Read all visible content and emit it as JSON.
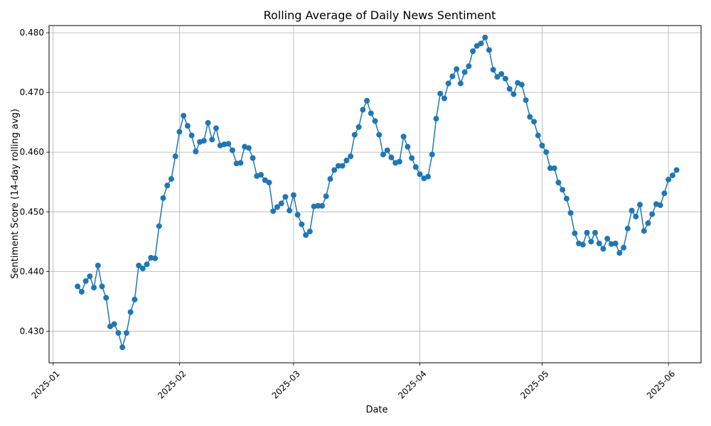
{
  "chart_data": {
    "type": "line",
    "title": "Rolling Average of Daily News Sentiment",
    "xlabel": "Date",
    "ylabel": "Sentiment Score (14-day rolling avg)",
    "x_tick_labels": [
      "2025-01",
      "2025-02",
      "2025-03",
      "2025-04",
      "2025-05",
      "2025-06"
    ],
    "y_tick_labels": [
      "0.430",
      "0.440",
      "0.450",
      "0.460",
      "0.470",
      "0.480"
    ],
    "xlim": [
      "2024-12-31",
      "2025-06-09"
    ],
    "ylim": [
      0.4247,
      0.4812
    ],
    "grid": true,
    "marker": "circle",
    "color": "#1f77b4",
    "series": [
      {
        "x_start": "2025-01-07",
        "x_step_days": 1,
        "values": [
          0.4375,
          0.4366,
          0.4384,
          0.4392,
          0.4373,
          0.441,
          0.4375,
          0.4356,
          0.4308,
          0.4312,
          0.4297,
          0.4273,
          0.4297,
          0.4332,
          0.4353,
          0.441,
          0.4405,
          0.4412,
          0.4423,
          0.4422,
          0.4476,
          0.4523,
          0.4544,
          0.4555,
          0.4593,
          0.4634,
          0.4661,
          0.4644,
          0.4628,
          0.4601,
          0.4617,
          0.4619,
          0.4649,
          0.4621,
          0.464,
          0.4611,
          0.4613,
          0.4614,
          0.4603,
          0.4581,
          0.4582,
          0.4609,
          0.4607,
          0.459,
          0.456,
          0.4562,
          0.4553,
          0.4549,
          0.4501,
          0.4508,
          0.4514,
          0.4525,
          0.4502,
          0.4528,
          0.4495,
          0.4479,
          0.4461,
          0.4467,
          0.4509,
          0.451,
          0.451,
          0.4526,
          0.4555,
          0.457,
          0.4577,
          0.4577,
          0.4586,
          0.4593,
          0.4629,
          0.4642,
          0.4671,
          0.4686,
          0.4665,
          0.4652,
          0.4629,
          0.4596,
          0.4603,
          0.4591,
          0.4582,
          0.4584,
          0.4626,
          0.4609,
          0.459,
          0.4575,
          0.4563,
          0.4556,
          0.4559,
          0.4596,
          0.4656,
          0.4698,
          0.469,
          0.4715,
          0.4727,
          0.4739,
          0.4715,
          0.4734,
          0.4744,
          0.4769,
          0.4778,
          0.4782,
          0.4792,
          0.4771,
          0.4738,
          0.4726,
          0.4731,
          0.4723,
          0.4706,
          0.4697,
          0.4716,
          0.4713,
          0.4687,
          0.4659,
          0.4651,
          0.4628,
          0.4611,
          0.46,
          0.4573,
          0.4573,
          0.4549,
          0.4537,
          0.4522,
          0.4498,
          0.4464,
          0.4447,
          0.4445,
          0.4465,
          0.445,
          0.4465,
          0.4447,
          0.4438,
          0.4455,
          0.4446,
          0.4447,
          0.4431,
          0.444,
          0.4472,
          0.4502,
          0.4492,
          0.4512,
          0.4468,
          0.4481,
          0.4496,
          0.4513,
          0.4511,
          0.4531,
          0.4554,
          0.4561,
          0.457
        ]
      }
    ]
  }
}
